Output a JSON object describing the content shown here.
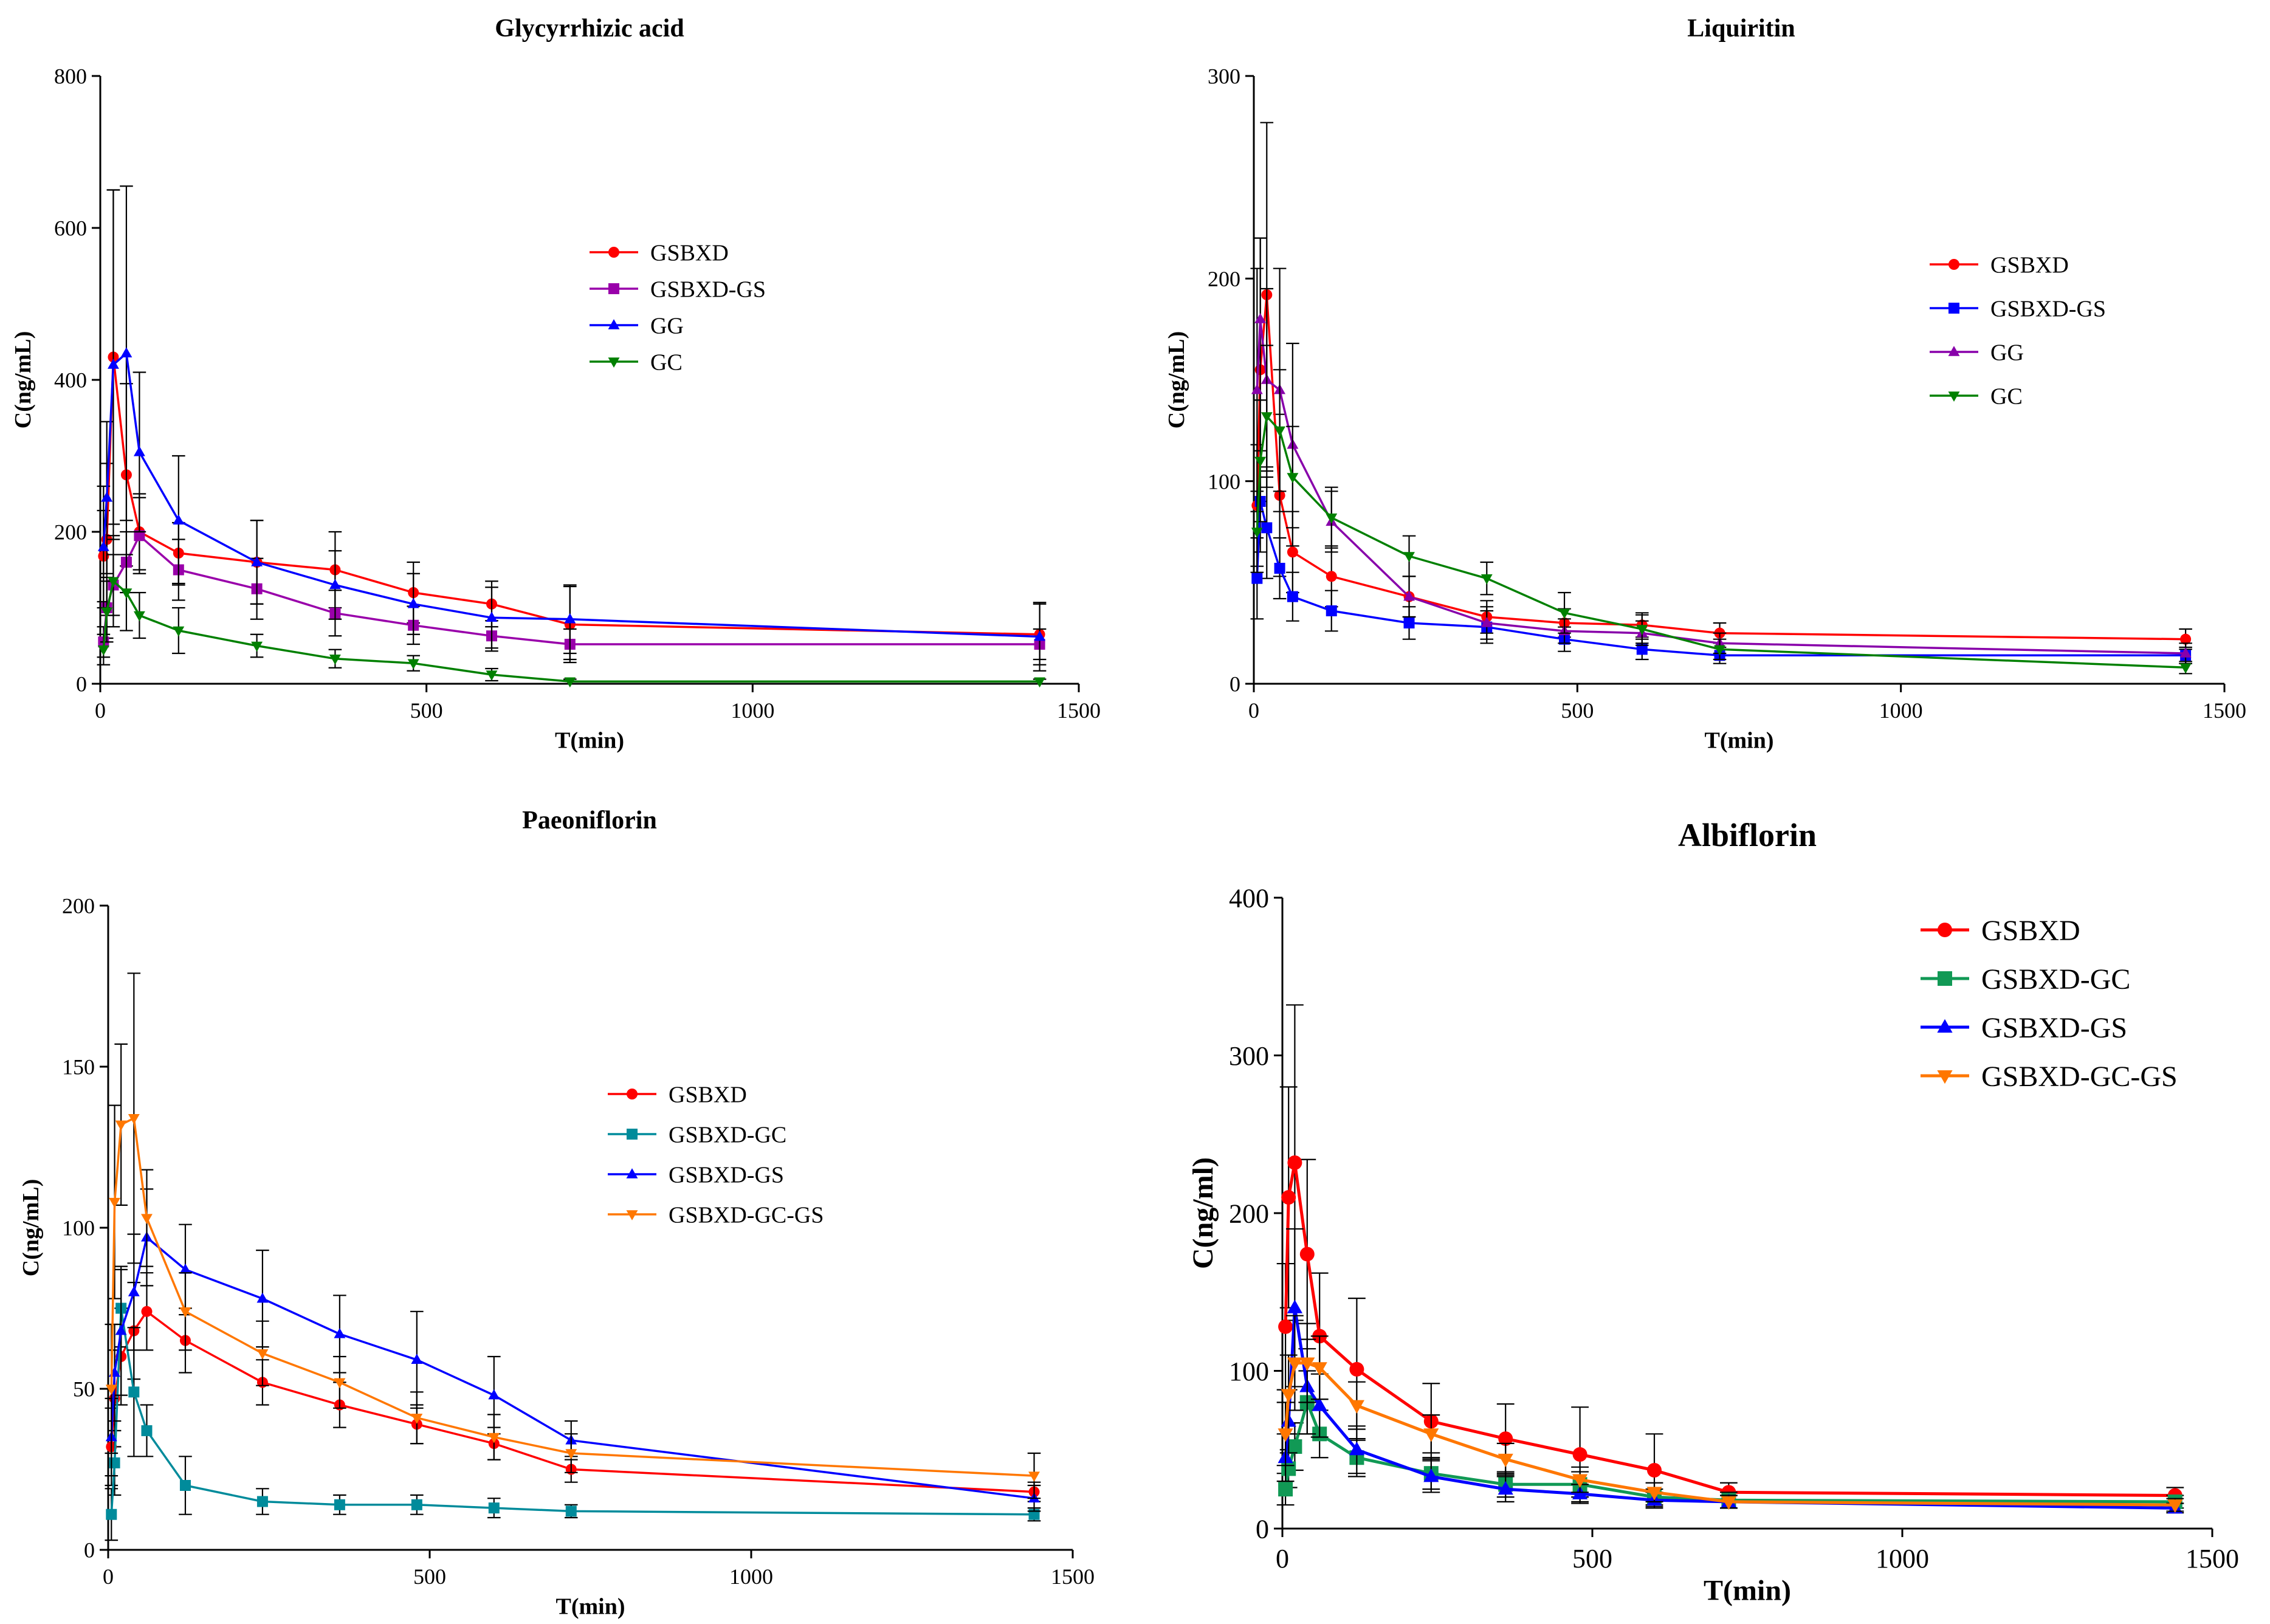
{
  "chart_data": [
    {
      "type": "line",
      "title": "Glycyrrhizic acid",
      "xlabel": "T(min)",
      "ylabel": "C(ng/mL)",
      "xlim": [
        0,
        1500
      ],
      "ylim": [
        0,
        800
      ],
      "xticks": [
        0,
        500,
        1000,
        1500
      ],
      "yticks": [
        0,
        200,
        400,
        600,
        800
      ],
      "x": [
        5,
        10,
        20,
        40,
        60,
        120,
        240,
        360,
        480,
        600,
        720,
        1440
      ],
      "series": [
        {
          "name": "GSBXD",
          "color": "#ff0000",
          "marker": "circle",
          "values": [
            168,
            190,
            430,
            275,
            200,
            172,
            160,
            150,
            120,
            105,
            78,
            65
          ],
          "errors": [
            60,
            100,
            220,
            120,
            50,
            40,
            55,
            50,
            40,
            30,
            50,
            40
          ]
        },
        {
          "name": "GSBXD-GS",
          "color": "#9900aa",
          "marker": "square",
          "values": [
            55,
            100,
            130,
            160,
            195,
            150,
            125,
            93,
            77,
            63,
            52,
            52
          ],
          "errors": [
            20,
            40,
            40,
            40,
            50,
            40,
            40,
            30,
            25,
            20,
            20,
            20
          ]
        },
        {
          "name": "GG",
          "color": "#0000ff",
          "marker": "triangle-up",
          "values": [
            180,
            245,
            420,
            435,
            305,
            215,
            160,
            130,
            105,
            87,
            85,
            62
          ],
          "errors": [
            80,
            100,
            230,
            220,
            105,
            85,
            55,
            45,
            40,
            40,
            45,
            45
          ]
        },
        {
          "name": "GC",
          "color": "#008000",
          "marker": "triangle-down",
          "values": [
            45,
            95,
            135,
            120,
            90,
            70,
            50,
            33,
            27,
            12,
            3,
            3
          ],
          "errors": [
            20,
            40,
            60,
            50,
            30,
            30,
            15,
            12,
            10,
            8,
            3,
            3
          ]
        }
      ]
    },
    {
      "type": "line",
      "title": "Liquiritin",
      "xlabel": "T(min)",
      "ylabel": "C(ng/mL)",
      "xlim": [
        0,
        1500
      ],
      "ylim": [
        0,
        300
      ],
      "xticks": [
        0,
        500,
        1000,
        1500
      ],
      "yticks": [
        0,
        100,
        200,
        300
      ],
      "x": [
        5,
        10,
        20,
        40,
        60,
        120,
        240,
        360,
        480,
        600,
        720,
        1440
      ],
      "series": [
        {
          "name": "GSBXD",
          "color": "#ff0000",
          "marker": "circle",
          "values": [
            88,
            155,
            192,
            93,
            65,
            53,
            43,
            33,
            30,
            29,
            25,
            22
          ],
          "errors": [
            30,
            65,
            85,
            40,
            20,
            15,
            10,
            8,
            7,
            6,
            5,
            5
          ]
        },
        {
          "name": "GSBXD-GS",
          "color": "#0000ff",
          "marker": "square",
          "values": [
            52,
            90,
            77,
            57,
            43,
            36,
            30,
            28,
            22,
            17,
            14,
            14
          ],
          "errors": [
            20,
            25,
            25,
            15,
            12,
            10,
            8,
            8,
            6,
            5,
            4,
            4
          ]
        },
        {
          "name": "GG",
          "color": "#8800aa",
          "marker": "triangle-up",
          "values": [
            145,
            180,
            150,
            145,
            118,
            80,
            43,
            30,
            26,
            25,
            20,
            15
          ],
          "errors": [
            60,
            40,
            45,
            60,
            50,
            15,
            10,
            8,
            6,
            6,
            5,
            5
          ]
        },
        {
          "name": "GC",
          "color": "#008000",
          "marker": "triangle-down",
          "values": [
            75,
            110,
            132,
            125,
            102,
            82,
            63,
            52,
            35,
            27,
            17,
            8
          ],
          "errors": [
            20,
            30,
            35,
            30,
            25,
            15,
            10,
            8,
            10,
            7,
            5,
            3
          ]
        }
      ]
    },
    {
      "type": "line",
      "title": "Paeoniflorin",
      "xlabel": "T(min)",
      "ylabel": "C(ng/mL)",
      "xlim": [
        0,
        1500
      ],
      "ylim": [
        0,
        200
      ],
      "xticks": [
        0,
        500,
        1000,
        1500
      ],
      "yticks": [
        0,
        50,
        100,
        150,
        200
      ],
      "x": [
        5,
        10,
        20,
        40,
        60,
        120,
        240,
        360,
        480,
        600,
        720,
        1440
      ],
      "series": [
        {
          "name": "GSBXD",
          "color": "#ff0000",
          "marker": "circle",
          "values": [
            32,
            47,
            60,
            68,
            74,
            65,
            52,
            45,
            39,
            33,
            25,
            18
          ],
          "errors": [
            12,
            15,
            15,
            15,
            12,
            10,
            7,
            7,
            6,
            5,
            4,
            3
          ]
        },
        {
          "name": "GSBXD-GC",
          "color": "#008b9b",
          "marker": "square",
          "values": [
            11,
            27,
            75,
            49,
            37,
            20,
            15,
            14,
            14,
            13,
            12,
            11
          ],
          "errors": [
            8,
            10,
            12,
            20,
            8,
            9,
            4,
            3,
            3,
            3,
            2,
            2
          ]
        },
        {
          "name": "GSBXD-GS",
          "color": "#0000ff",
          "marker": "triangle-up",
          "values": [
            35,
            55,
            68,
            80,
            97,
            87,
            78,
            67,
            59,
            48,
            34,
            16
          ],
          "errors": [
            12,
            15,
            20,
            18,
            15,
            14,
            15,
            12,
            15,
            12,
            6,
            4
          ]
        },
        {
          "name": "GSBXD-GC-GS",
          "color": "#ff7700",
          "marker": "triangle-down",
          "values": [
            50,
            108,
            132,
            134,
            103,
            74,
            61,
            52,
            41,
            35,
            30,
            23
          ],
          "errors": [
            20,
            30,
            25,
            45,
            15,
            12,
            10,
            8,
            8,
            7,
            6,
            7
          ]
        }
      ]
    },
    {
      "type": "line",
      "title": "Albiflorin",
      "xlabel": "T(min)",
      "ylabel": "C(ng/ml)",
      "xlim": [
        0,
        1500
      ],
      "ylim": [
        0,
        400
      ],
      "xticks": [
        0,
        500,
        1000,
        1500
      ],
      "yticks": [
        0,
        100,
        200,
        300,
        400
      ],
      "x": [
        5,
        10,
        20,
        40,
        60,
        120,
        240,
        360,
        480,
        600,
        720,
        1440
      ],
      "series": [
        {
          "name": "GSBXD",
          "color": "#ff0000",
          "marker": "circle",
          "values": [
            128,
            210,
            232,
            174,
            122,
            101,
            68,
            57,
            47,
            37,
            23,
            21
          ],
          "errors": [
            40,
            70,
            100,
            60,
            40,
            45,
            24,
            22,
            30,
            23,
            6,
            5
          ]
        },
        {
          "name": "GSBXD-GC",
          "color": "#119955",
          "marker": "square",
          "values": [
            25,
            38,
            52,
            80,
            60,
            45,
            35,
            28,
            28,
            20,
            18,
            17
          ],
          "errors": [
            10,
            12,
            15,
            20,
            15,
            12,
            10,
            8,
            8,
            5,
            5,
            4
          ]
        },
        {
          "name": "GSBXD-GS",
          "color": "#0000ff",
          "marker": "triangle-up",
          "values": [
            45,
            68,
            140,
            90,
            78,
            50,
            33,
            25,
            22,
            18,
            17,
            13
          ],
          "errors": [
            15,
            20,
            50,
            30,
            20,
            15,
            10,
            8,
            6,
            5,
            4,
            3
          ]
        },
        {
          "name": "GSBXD-GC-GS",
          "color": "#ff7700",
          "marker": "triangle-down",
          "values": [
            60,
            85,
            105,
            105,
            102,
            78,
            60,
            44,
            31,
            23,
            17,
            15
          ],
          "errors": [
            20,
            25,
            30,
            25,
            20,
            15,
            12,
            10,
            8,
            6,
            4,
            4
          ]
        }
      ]
    }
  ]
}
